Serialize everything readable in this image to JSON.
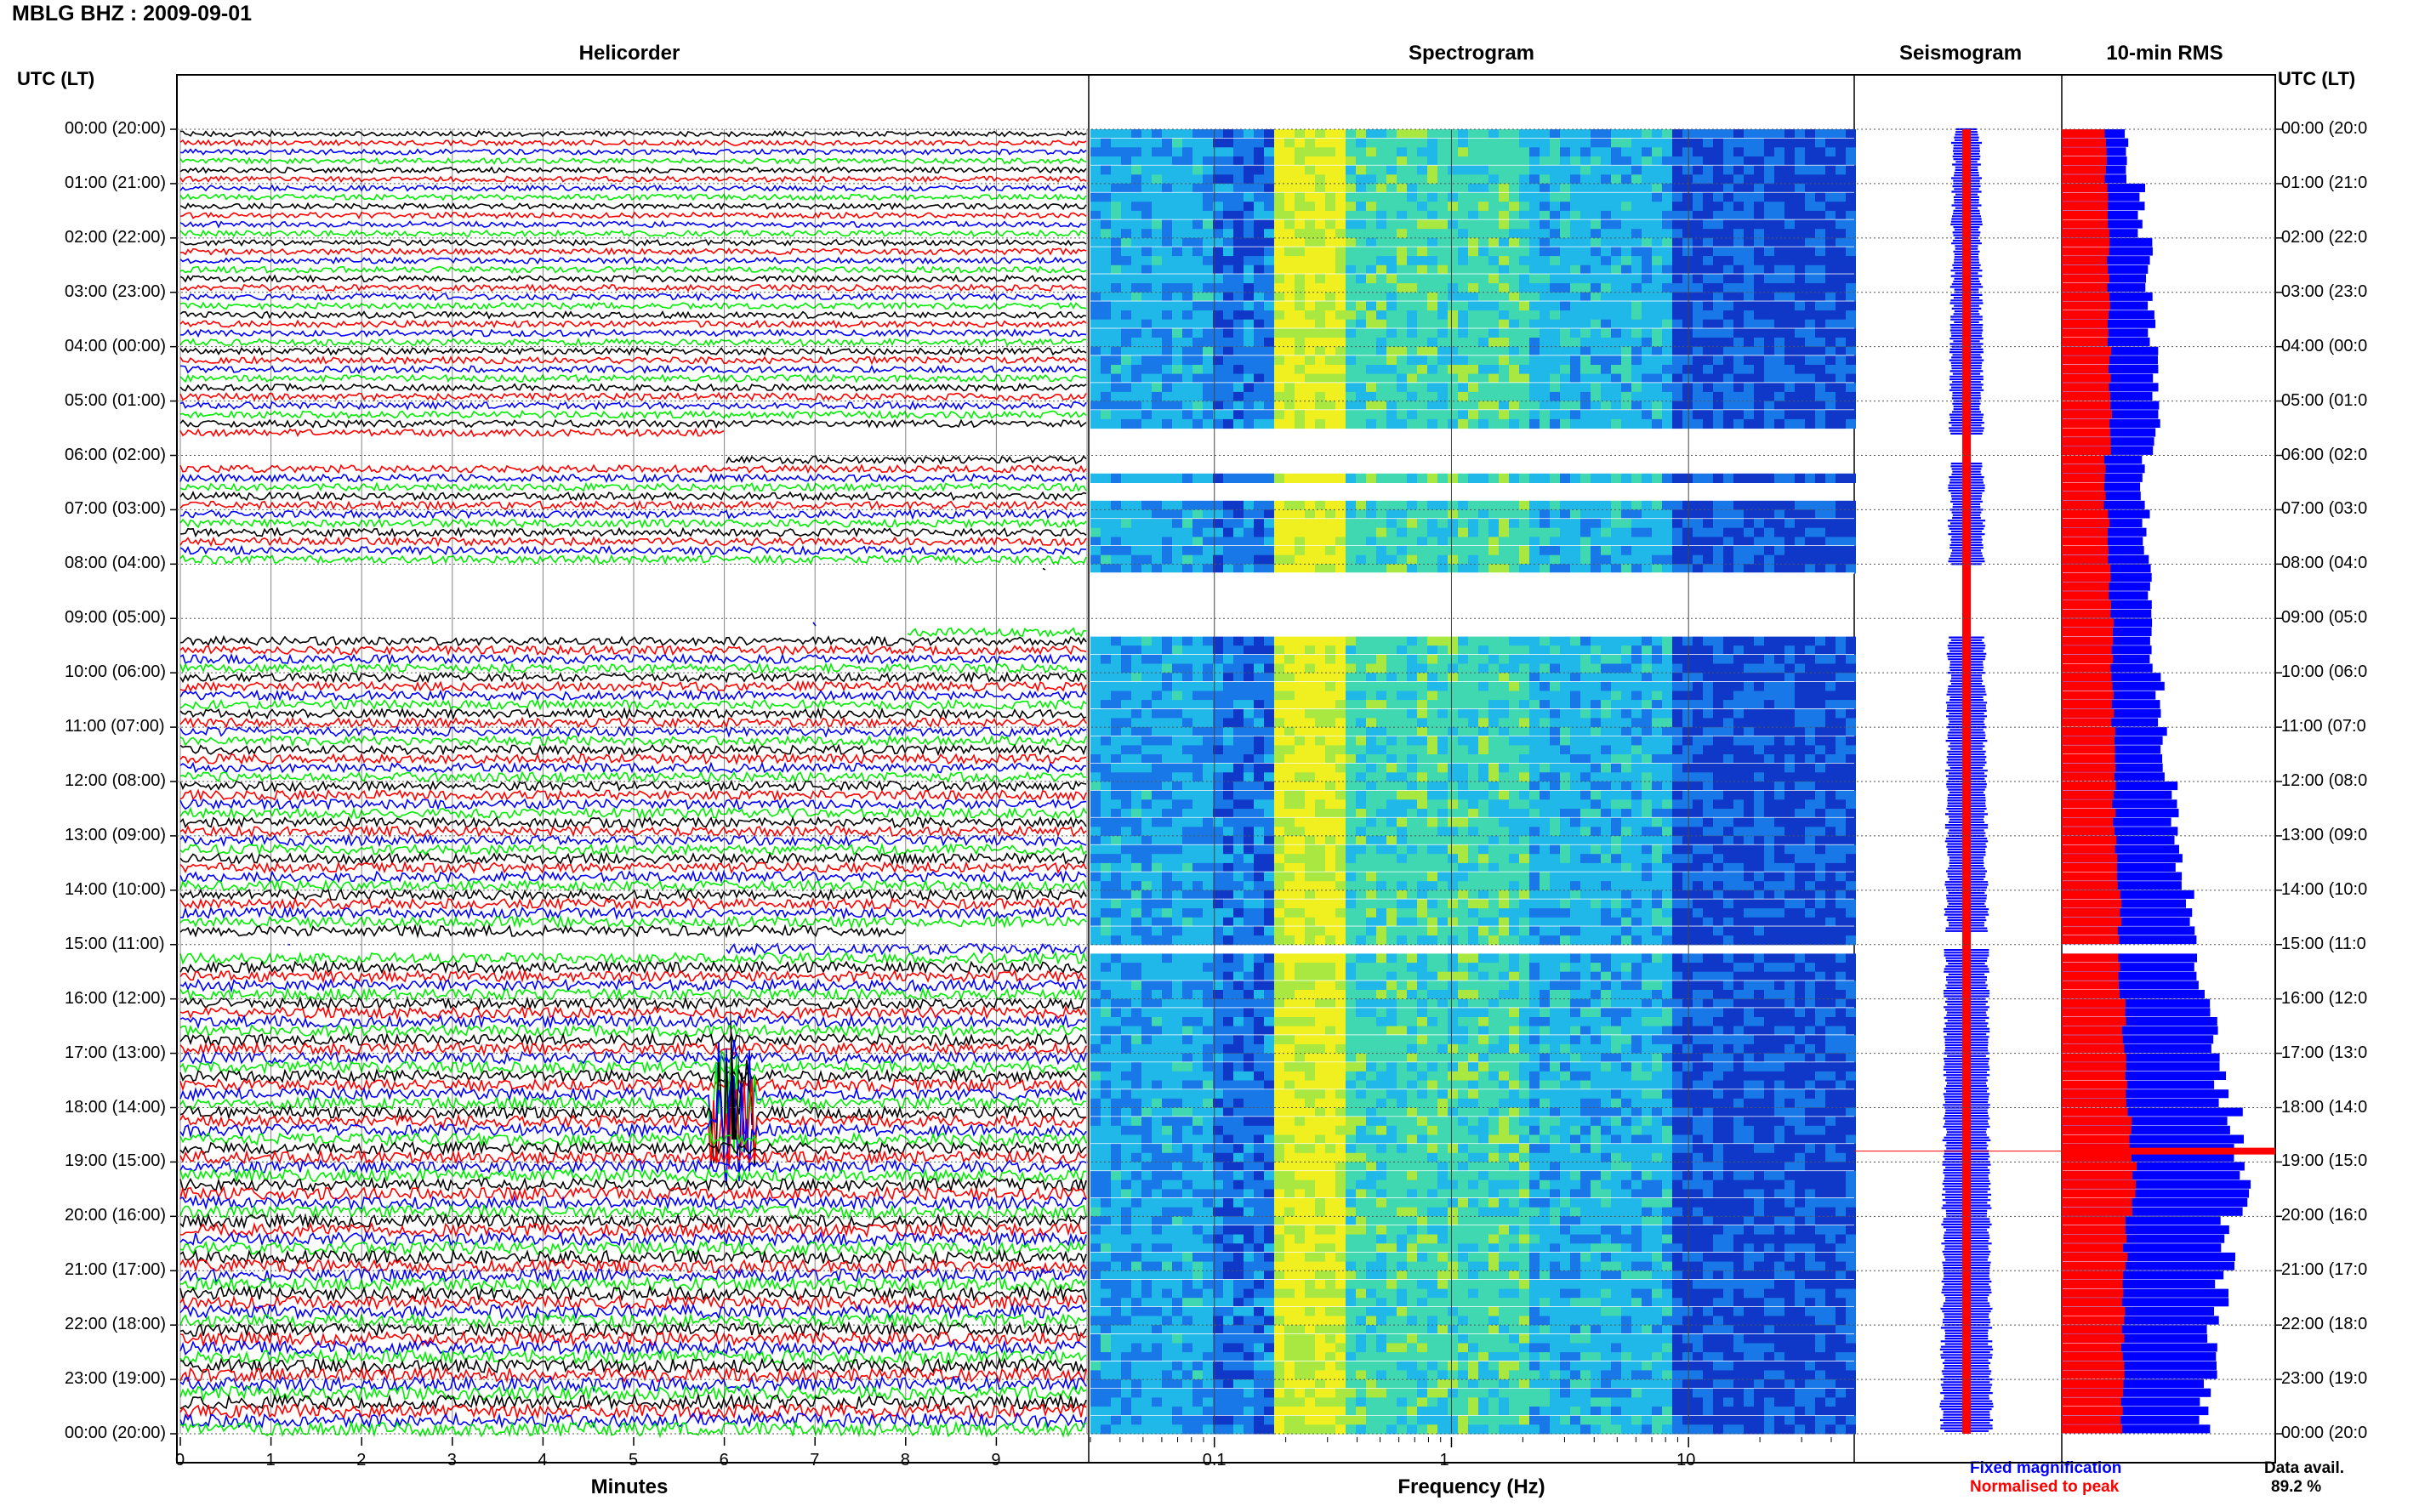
{
  "title": "MBLG BHZ : 2009-09-01",
  "panels": {
    "helicorder": "Helicorder",
    "spectrogram": "Spectrogram",
    "seismogram": "Seismogram",
    "rms": "10-min RMS"
  },
  "left_axis_header": "UTC (LT)",
  "right_axis_header": "UTC (LT)",
  "time_labels": [
    "00:00 (20:00)",
    "01:00 (21:00)",
    "02:00 (22:00)",
    "03:00 (23:00)",
    "04:00 (00:00)",
    "05:00 (01:00)",
    "06:00 (02:00)",
    "07:00 (03:00)",
    "08:00 (04:00)",
    "09:00 (05:00)",
    "10:00 (06:00)",
    "11:00 (07:00)",
    "12:00 (08:00)",
    "13:00 (09:00)",
    "14:00 (10:00)",
    "15:00 (11:00)",
    "16:00 (12:00)",
    "17:00 (13:00)",
    "18:00 (14:00)",
    "19:00 (15:00)",
    "20:00 (16:00)",
    "21:00 (17:00)",
    "22:00 (18:00)",
    "23:00 (19:00)",
    "00:00 (20:00)"
  ],
  "right_time_labels": [
    "00:00 (20:0",
    "01:00 (21:0",
    "02:00 (22:0",
    "03:00 (23:0",
    "04:00 (00:0",
    "05:00 (01:0",
    "06:00 (02:0",
    "07:00 (03:0",
    "08:00 (04:0",
    "09:00 (05:0",
    "10:00 (06:0",
    "11:00 (07:0",
    "12:00 (08:0",
    "13:00 (09:0",
    "14:00 (10:0",
    "15:00 (11:0",
    "16:00 (12:0",
    "17:00 (13:0",
    "18:00 (14:0",
    "19:00 (15:0",
    "20:00 (16:0",
    "21:00 (17:0",
    "22:00 (18:0",
    "23:00 (19:0",
    "00:00 (20:0"
  ],
  "helicorder_x_ticks": [
    "0",
    "1",
    "2",
    "3",
    "4",
    "5",
    "6",
    "7",
    "8",
    "9"
  ],
  "helicorder_x_label": "Minutes",
  "spectrogram_x_ticks": [
    "0.1",
    "1",
    "10"
  ],
  "spectrogram_x_label": "Frequency (Hz)",
  "legend": {
    "fixed": "Fixed magnification",
    "normalised": "Normalised to peak"
  },
  "data_availability_label": "Data avail.",
  "data_availability_value": "89.2 %",
  "colors": {
    "trace_cycle": [
      "#000000",
      "#ff0000",
      "#0000ff",
      "#00ee00"
    ],
    "fixed": "#0000ff",
    "normalised": "#ff0000",
    "grid": "#999999"
  },
  "chart_data": [
    {
      "type": "line",
      "title": "Helicorder",
      "xlabel": "Minutes",
      "xlim": [
        0,
        10
      ],
      "ylim_hours": [
        0,
        24
      ],
      "traces_per_hour": 6,
      "gaps_hours": [
        [
          5.6,
          6.1
        ],
        [
          8.0,
          9.3
        ],
        [
          14.8,
          15.1
        ]
      ],
      "event_hour": 18.0,
      "event_minute": 6.1
    },
    {
      "type": "heatmap",
      "title": "Spectrogram",
      "xlabel": "Frequency (Hz)",
      "x_scale": "log",
      "xlim": [
        0.03,
        50
      ],
      "gaps_hours": [
        [
          5.5,
          6.2
        ],
        [
          6.4,
          6.8
        ],
        [
          8.1,
          9.3
        ],
        [
          14.9,
          15.1
        ]
      ]
    },
    {
      "type": "bar",
      "title": "10-min RMS",
      "series": [
        {
          "name": "Fixed magnification",
          "values": [
            0.45,
            0.55,
            0.6,
            0.62,
            0.65,
            0.66,
            0.55,
            0.58,
            0.6,
            0.62,
            0.68,
            0.7,
            0.78,
            0.82,
            0.9,
            0.95,
            1.05,
            1.1,
            1.2,
            1.25,
            1.15,
            1.1,
            1.05,
            1.0,
            0.9
          ]
        },
        {
          "name": "Normalised to peak",
          "values": [
            0.3,
            0.32,
            0.32,
            0.33,
            0.33,
            0.34,
            0.3,
            0.32,
            0.33,
            0.35,
            0.35,
            0.36,
            0.36,
            0.38,
            0.4,
            0.4,
            0.43,
            0.45,
            0.47,
            0.5,
            0.44,
            0.43,
            0.42,
            0.42,
            0.4
          ]
        }
      ],
      "spike_hour": 18.8
    }
  ]
}
